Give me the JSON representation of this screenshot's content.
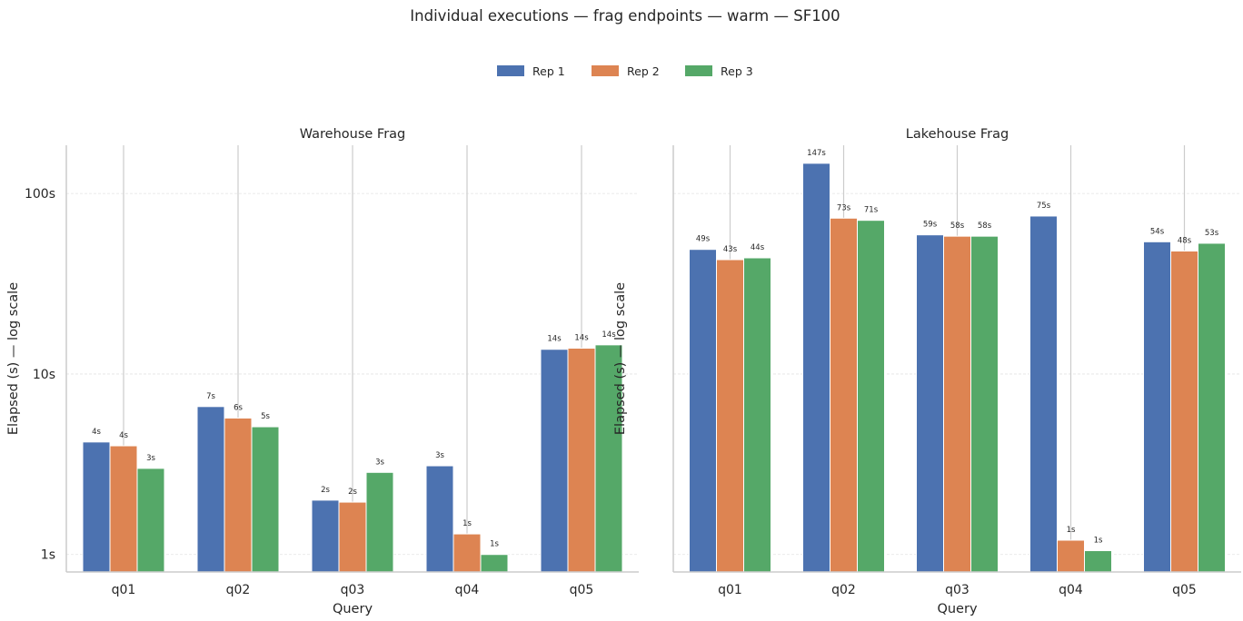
{
  "chart_data": {
    "type": "bar",
    "suptitle": "Individual executions — frag endpoints — warm — SF100",
    "legend": {
      "placement": "top-center",
      "entries": [
        "Rep 1",
        "Rep 2",
        "Rep 3"
      ]
    },
    "colors": [
      "#4c72b0",
      "#dd8452",
      "#55a868"
    ],
    "yscale": "log",
    "yticks": [
      1,
      10,
      100
    ],
    "ytick_labels": [
      "1s",
      "10s",
      "100s"
    ],
    "ylim": [
      0.8,
      185
    ],
    "grid": "y",
    "panels": [
      {
        "title": "Warehouse Frag",
        "xlabel": "Query",
        "ylabel": "Elapsed (s) — log scale",
        "categories": [
          "q01",
          "q02",
          "q03",
          "q04",
          "q05"
        ],
        "series": [
          {
            "name": "Rep 1",
            "values": [
              4.2,
              6.6,
              2.0,
              3.1,
              13.7
            ],
            "labels": [
              "4s",
              "7s",
              "2s",
              "3s",
              "14s"
            ]
          },
          {
            "name": "Rep 2",
            "values": [
              4.0,
              5.7,
              1.95,
              1.3,
              13.9
            ],
            "labels": [
              "4s",
              "6s",
              "2s",
              "1s",
              "14s"
            ]
          },
          {
            "name": "Rep 3",
            "values": [
              3.0,
              5.1,
              2.85,
              1.0,
              14.5
            ],
            "labels": [
              "3s",
              "5s",
              "3s",
              "1s",
              "14s"
            ]
          }
        ]
      },
      {
        "title": "Lakehouse Frag",
        "xlabel": "Query",
        "ylabel": "Elapsed (s) — log scale",
        "categories": [
          "q01",
          "q02",
          "q03",
          "q04",
          "q05"
        ],
        "series": [
          {
            "name": "Rep 1",
            "values": [
              49,
              147,
              59,
              75,
              54
            ],
            "labels": [
              "49s",
              "147s",
              "59s",
              "75s",
              "54s"
            ]
          },
          {
            "name": "Rep 2",
            "values": [
              43,
              73,
              58,
              1.2,
              48
            ],
            "labels": [
              "43s",
              "73s",
              "58s",
              "1s",
              "48s"
            ]
          },
          {
            "name": "Rep 3",
            "values": [
              44,
              71,
              58,
              1.05,
              53
            ],
            "labels": [
              "44s",
              "71s",
              "58s",
              "1s",
              "53s"
            ]
          }
        ]
      }
    ]
  }
}
